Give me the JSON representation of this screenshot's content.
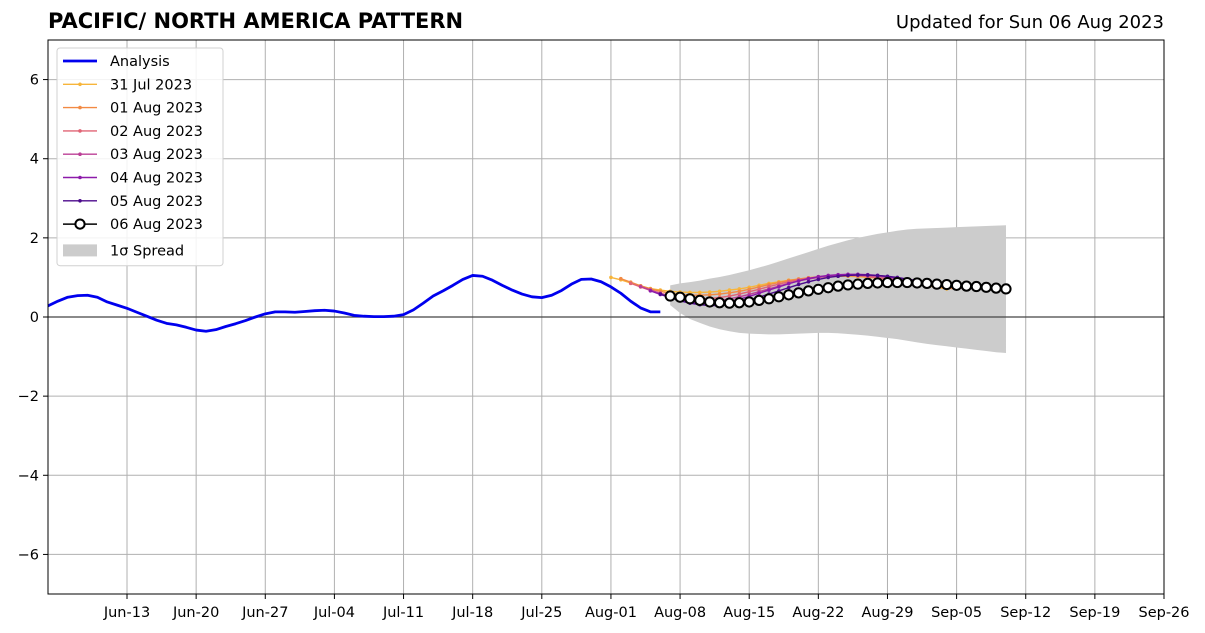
{
  "header": {
    "title": "PACIFIC/ NORTH AMERICA PATTERN",
    "updated": "Updated for Sun 06 Aug 2023"
  },
  "chart_data": {
    "type": "line",
    "ylim": [
      -7,
      7
    ],
    "yticks": [
      -6,
      -4,
      -2,
      0,
      2,
      4,
      6
    ],
    "ytick_labels": [
      "−6",
      "−4",
      "−2",
      "0",
      "2",
      "4",
      "6"
    ],
    "xlim": [
      "2023-06-05",
      "2023-09-26"
    ],
    "xticks": [
      "2023-06-13",
      "2023-06-20",
      "2023-06-27",
      "2023-07-04",
      "2023-07-11",
      "2023-07-18",
      "2023-07-25",
      "2023-08-01",
      "2023-08-08",
      "2023-08-15",
      "2023-08-22",
      "2023-08-29",
      "2023-09-05",
      "2023-09-12",
      "2023-09-19",
      "2023-09-26"
    ],
    "xtick_labels": [
      "Jun-13",
      "Jun-20",
      "Jun-27",
      "Jul-04",
      "Jul-11",
      "Jul-18",
      "Jul-25",
      "Aug-01",
      "Aug-08",
      "Aug-15",
      "Aug-22",
      "Aug-29",
      "Sep-05",
      "Sep-12",
      "Sep-19",
      "Sep-26"
    ],
    "grid": true,
    "legend_position": "top-left",
    "colors": {
      "analysis": "#0000ee",
      "f0731": "#f7b53a",
      "f0801": "#f28a43",
      "f0802": "#e06475",
      "f0803": "#bb3f96",
      "f0804": "#8d1aaa",
      "f0805": "#4b0a8c",
      "f0806": "#000000",
      "spread": "#cccccc"
    },
    "series": [
      {
        "name": "Analysis",
        "key": "analysis",
        "x": [
          "2023-06-05",
          "2023-06-06",
          "2023-06-07",
          "2023-06-08",
          "2023-06-09",
          "2023-06-10",
          "2023-06-11",
          "2023-06-12",
          "2023-06-13",
          "2023-06-14",
          "2023-06-15",
          "2023-06-16",
          "2023-06-17",
          "2023-06-18",
          "2023-06-19",
          "2023-06-20",
          "2023-06-21",
          "2023-06-22",
          "2023-06-23",
          "2023-06-24",
          "2023-06-25",
          "2023-06-26",
          "2023-06-27",
          "2023-06-28",
          "2023-06-29",
          "2023-06-30",
          "2023-07-01",
          "2023-07-02",
          "2023-07-03",
          "2023-07-04",
          "2023-07-05",
          "2023-07-06",
          "2023-07-07",
          "2023-07-08",
          "2023-07-09",
          "2023-07-10",
          "2023-07-11",
          "2023-07-12",
          "2023-07-13",
          "2023-07-14",
          "2023-07-15",
          "2023-07-16",
          "2023-07-17",
          "2023-07-18",
          "2023-07-19",
          "2023-07-20",
          "2023-07-21",
          "2023-07-22",
          "2023-07-23",
          "2023-07-24",
          "2023-07-25",
          "2023-07-26",
          "2023-07-27",
          "2023-07-28",
          "2023-07-29",
          "2023-07-30",
          "2023-07-31",
          "2023-08-01",
          "2023-08-02",
          "2023-08-03",
          "2023-08-04",
          "2023-08-05",
          "2023-08-06"
        ],
        "values": [
          0.28,
          0.4,
          0.5,
          0.54,
          0.55,
          0.5,
          0.38,
          0.3,
          0.22,
          0.12,
          0.02,
          -0.08,
          -0.16,
          -0.2,
          -0.26,
          -0.33,
          -0.36,
          -0.32,
          -0.24,
          -0.17,
          -0.09,
          0.0,
          0.08,
          0.13,
          0.13,
          0.12,
          0.14,
          0.16,
          0.17,
          0.15,
          0.1,
          0.04,
          0.02,
          0.01,
          0.01,
          0.02,
          0.06,
          0.18,
          0.35,
          0.53,
          0.66,
          0.8,
          0.95,
          1.05,
          1.03,
          0.93,
          0.8,
          0.68,
          0.58,
          0.51,
          0.49,
          0.55,
          0.67,
          0.83,
          0.95,
          0.96,
          0.89,
          0.76,
          0.6,
          0.4,
          0.23,
          0.13,
          0.13
        ]
      },
      {
        "name": "31 Jul 2023",
        "key": "f0731",
        "start": "2023-08-01",
        "values": [
          1.0,
          0.94,
          0.86,
          0.79,
          0.72,
          0.68,
          0.65,
          0.63,
          0.62,
          0.62,
          0.63,
          0.65,
          0.68,
          0.71,
          0.75,
          0.8,
          0.85,
          0.89,
          0.93,
          0.96,
          0.99,
          1.01,
          1.02,
          1.03,
          1.03,
          1.02,
          1.0,
          0.98,
          0.95,
          0.91,
          0.87,
          0.83,
          0.79,
          0.75,
          0.71
        ]
      },
      {
        "name": "01 Aug 2023",
        "key": "f0801",
        "start": "2023-08-02",
        "values": [
          0.97,
          0.88,
          0.79,
          0.71,
          0.65,
          0.6,
          0.57,
          0.55,
          0.55,
          0.56,
          0.58,
          0.61,
          0.65,
          0.7,
          0.76,
          0.82,
          0.87,
          0.92,
          0.96,
          0.99,
          1.02,
          1.04,
          1.05,
          1.05,
          1.04,
          1.02,
          0.99,
          0.96,
          0.92,
          0.88,
          0.84,
          0.8,
          0.76,
          0.73,
          0.71
        ]
      },
      {
        "name": "02 Aug 2023",
        "key": "f0802",
        "start": "2023-08-03",
        "values": [
          0.85,
          0.76,
          0.67,
          0.6,
          0.54,
          0.5,
          0.47,
          0.46,
          0.47,
          0.49,
          0.53,
          0.58,
          0.64,
          0.7,
          0.77,
          0.83,
          0.89,
          0.94,
          0.98,
          1.01,
          1.03,
          1.05,
          1.05,
          1.04,
          1.02,
          0.99,
          0.96,
          0.93,
          0.89,
          0.85,
          0.82,
          0.79,
          0.76,
          0.74,
          0.72
        ]
      },
      {
        "name": "03 Aug 2023",
        "key": "f0803",
        "start": "2023-08-04",
        "values": [
          0.77,
          0.68,
          0.6,
          0.52,
          0.46,
          0.42,
          0.4,
          0.4,
          0.42,
          0.46,
          0.51,
          0.57,
          0.64,
          0.71,
          0.78,
          0.85,
          0.91,
          0.96,
          1.0,
          1.03,
          1.05,
          1.06,
          1.06,
          1.05,
          1.03,
          1.0,
          0.97,
          0.93,
          0.89,
          0.86,
          0.82,
          0.79,
          0.76,
          0.74,
          0.72
        ]
      },
      {
        "name": "04 Aug 2023",
        "key": "f0804",
        "start": "2023-08-05",
        "values": [
          0.66,
          0.57,
          0.49,
          0.42,
          0.37,
          0.34,
          0.33,
          0.35,
          0.39,
          0.45,
          0.52,
          0.6,
          0.68,
          0.76,
          0.84,
          0.91,
          0.97,
          1.02,
          1.05,
          1.07,
          1.08,
          1.08,
          1.07,
          1.05,
          1.02,
          0.98,
          0.94,
          0.9,
          0.86,
          0.82,
          0.79,
          0.76,
          0.74,
          0.72,
          0.71
        ]
      },
      {
        "name": "05 Aug 2023",
        "key": "f0805",
        "start": "2023-08-06",
        "values": [
          0.58,
          0.49,
          0.41,
          0.35,
          0.31,
          0.29,
          0.29,
          0.32,
          0.37,
          0.43,
          0.5,
          0.58,
          0.66,
          0.74,
          0.82,
          0.89,
          0.95,
          1.0,
          1.03,
          1.05,
          1.06,
          1.06,
          1.05,
          1.03,
          1.0,
          0.96,
          0.92,
          0.88,
          0.84,
          0.81,
          0.78,
          0.75,
          0.73,
          0.71,
          0.7
        ]
      },
      {
        "name": "06 Aug 2023",
        "key": "f0806",
        "start": "2023-08-07",
        "values": [
          0.53,
          0.5,
          0.46,
          0.42,
          0.38,
          0.36,
          0.35,
          0.36,
          0.38,
          0.42,
          0.46,
          0.51,
          0.56,
          0.61,
          0.66,
          0.7,
          0.74,
          0.78,
          0.81,
          0.83,
          0.85,
          0.86,
          0.87,
          0.87,
          0.87,
          0.86,
          0.85,
          0.83,
          0.82,
          0.8,
          0.78,
          0.77,
          0.75,
          0.73,
          0.71
        ]
      }
    ],
    "spread": {
      "name": "1σ Spread",
      "key": "spread",
      "start": "2023-08-07",
      "upper": [
        0.8,
        0.85,
        0.88,
        0.92,
        0.97,
        1.01,
        1.06,
        1.12,
        1.18,
        1.25,
        1.32,
        1.4,
        1.48,
        1.56,
        1.64,
        1.72,
        1.8,
        1.87,
        1.94,
        2.0,
        2.05,
        2.1,
        2.14,
        2.18,
        2.21,
        2.23,
        2.24,
        2.25,
        2.26,
        2.27,
        2.28,
        2.29,
        2.3,
        2.31,
        2.32
      ],
      "lower": [
        0.3,
        0.1,
        -0.05,
        -0.15,
        -0.24,
        -0.31,
        -0.36,
        -0.4,
        -0.42,
        -0.43,
        -0.44,
        -0.44,
        -0.43,
        -0.42,
        -0.41,
        -0.4,
        -0.4,
        -0.41,
        -0.43,
        -0.45,
        -0.47,
        -0.5,
        -0.53,
        -0.56,
        -0.6,
        -0.64,
        -0.68,
        -0.71,
        -0.74,
        -0.77,
        -0.8,
        -0.83,
        -0.86,
        -0.89,
        -0.91
      ]
    }
  }
}
